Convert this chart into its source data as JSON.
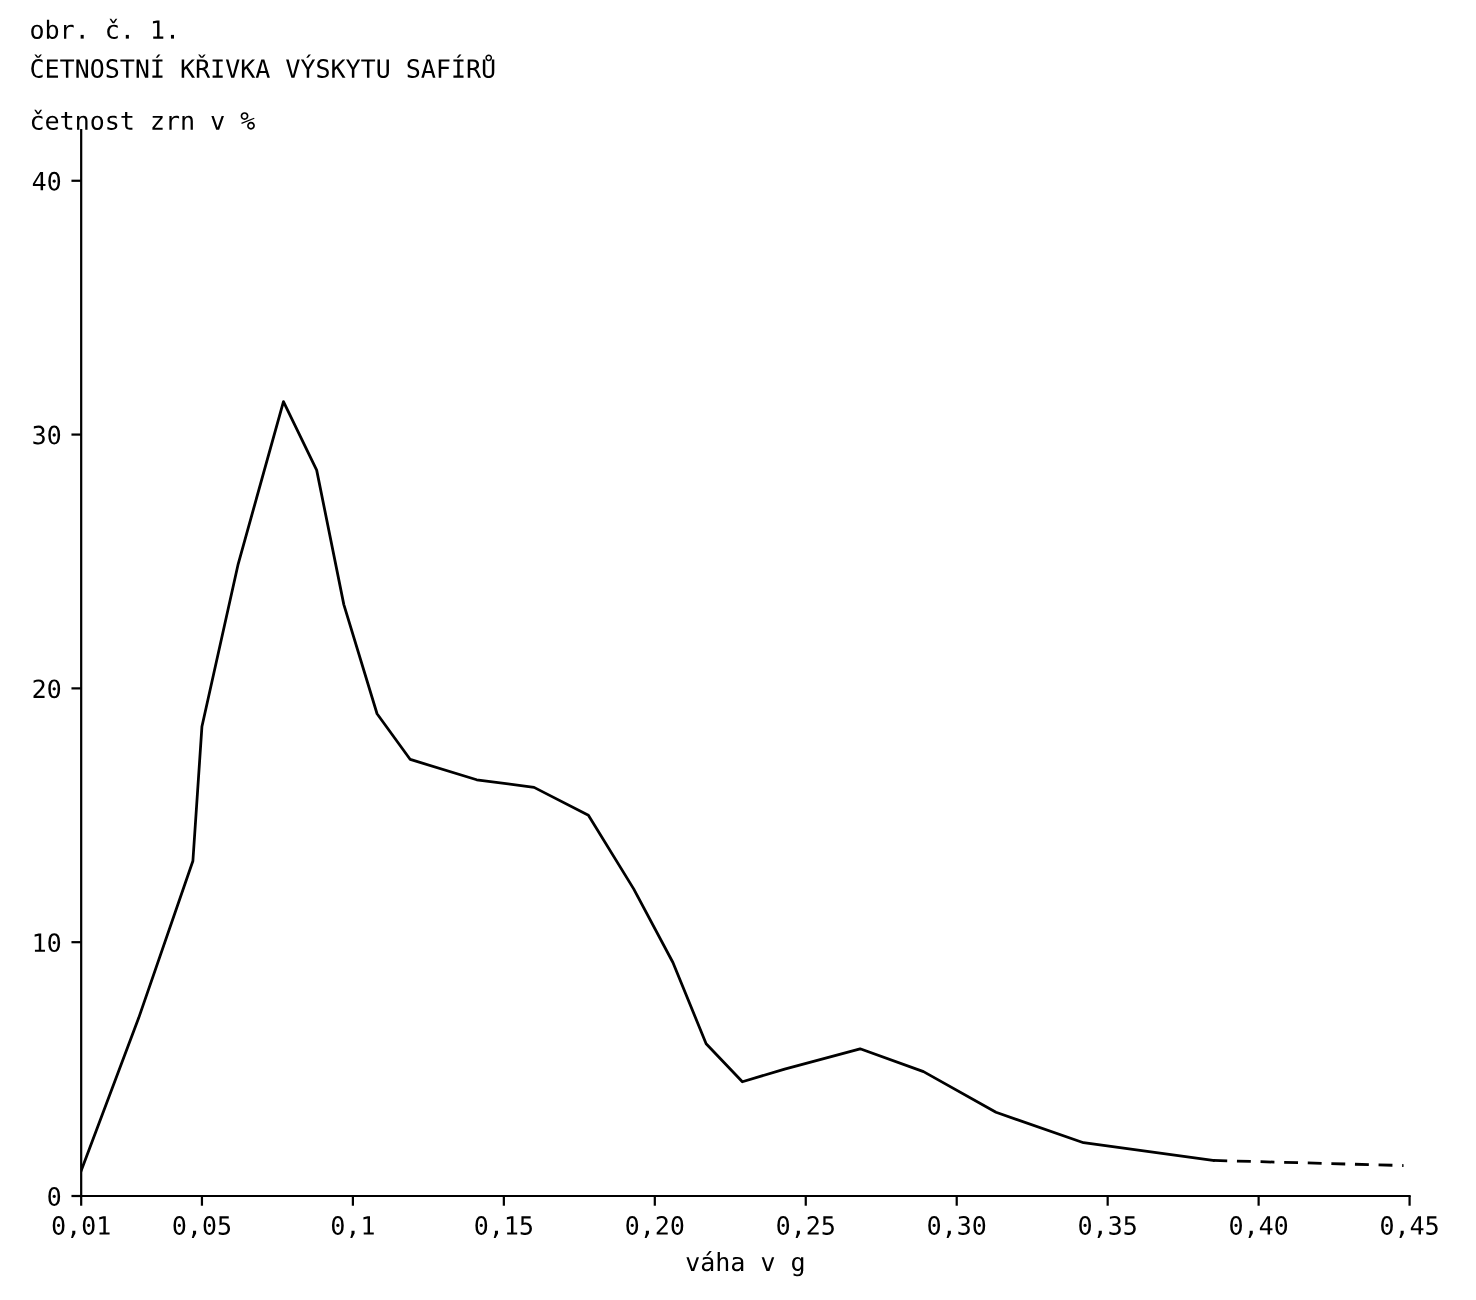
{
  "chart_data": {
    "type": "line",
    "title": "obr. č. 1.",
    "subtitle": "ČETNOSTNÍ KŘIVKA VÝSKYTU SAFÍRŮ",
    "ylabel": "četnost zrn v %",
    "xlabel": "váha v g",
    "series": [
      {
        "color": "#000000",
        "line_style": "solid",
        "x": [
          0.01,
          0.029,
          0.047,
          0.05,
          0.062,
          0.077,
          0.088,
          0.097,
          0.108,
          0.119,
          0.141,
          0.16,
          0.178,
          0.193,
          0.206,
          0.217,
          0.229,
          0.243,
          0.268,
          0.289,
          0.313,
          0.342,
          0.385
        ],
        "values": [
          1.0,
          7.0,
          13.2,
          18.5,
          24.9,
          31.3,
          28.6,
          23.3,
          19.0,
          17.2,
          16.4,
          16.1,
          15.0,
          12.1,
          9.2,
          6.0,
          4.5,
          5.0,
          5.8,
          4.9,
          3.3,
          2.1,
          1.4
        ]
      },
      {
        "color": "#000000",
        "line_style": "dashed",
        "x": [
          0.385,
          0.448
        ],
        "values": [
          1.4,
          1.2
        ]
      }
    ],
    "xlim": [
      0.01,
      0.45
    ],
    "xticks": [
      {
        "value": 0.01,
        "label": "0,01"
      },
      {
        "value": 0.05,
        "label": "0,05"
      },
      {
        "value": 0.1,
        "label": "0,1"
      },
      {
        "value": 0.15,
        "label": "0,15"
      },
      {
        "value": 0.2,
        "label": "0,20"
      },
      {
        "value": 0.25,
        "label": "0,25"
      },
      {
        "value": 0.3,
        "label": "0,30"
      },
      {
        "value": 0.35,
        "label": "0,35"
      },
      {
        "value": 0.4,
        "label": "0,40"
      },
      {
        "value": 0.45,
        "label": "0,45"
      }
    ],
    "ylim": [
      0,
      42
    ],
    "yticks": [
      0,
      10,
      20,
      30,
      40
    ],
    "grid": false,
    "legend": false,
    "marker": "none"
  }
}
